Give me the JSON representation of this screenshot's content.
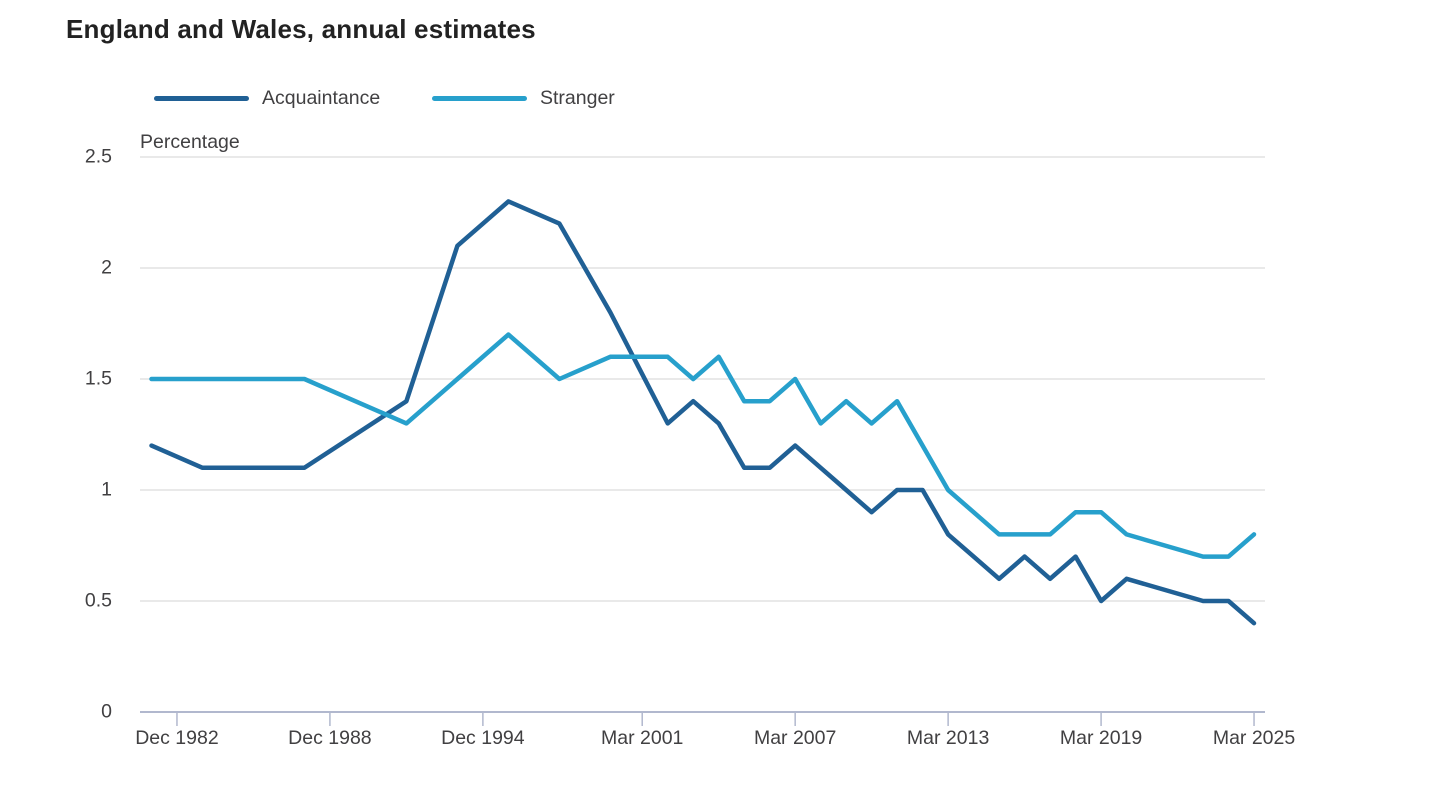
{
  "page": {
    "background": "#ffffff"
  },
  "header": {
    "title": "England and Wales, annual estimates"
  },
  "legend": {
    "items": [
      {
        "label": "Acquaintance",
        "color": "#206095"
      },
      {
        "label": "Stranger",
        "color": "#27A0CC"
      }
    ]
  },
  "chart_data": {
    "type": "line",
    "title": "England and Wales, annual estimates",
    "xlabel": "",
    "ylabel": "Percentage",
    "ylim": [
      0,
      2.5
    ],
    "xlim": [
      1981.55,
      2025.68
    ],
    "grid": "horizontal",
    "grid_color": "#e2e2e2",
    "axis_color": "#b1b8ce",
    "text_color": "#414042",
    "title_color": "#222222",
    "legend_position": "top",
    "yticks": [
      {
        "value": 0,
        "label": "0"
      },
      {
        "value": 0.5,
        "label": "0.5"
      },
      {
        "value": 1,
        "label": "1"
      },
      {
        "value": 1.5,
        "label": "1.5"
      },
      {
        "value": 2,
        "label": "2"
      },
      {
        "value": 2.5,
        "label": "2.5"
      }
    ],
    "xticks": [
      {
        "x": 1983,
        "label": "Dec 1982"
      },
      {
        "x": 1989,
        "label": "Dec 1988"
      },
      {
        "x": 1995,
        "label": "Dec 1994"
      },
      {
        "x": 2001.25,
        "label": "Mar 2001"
      },
      {
        "x": 2007.25,
        "label": "Mar 2007"
      },
      {
        "x": 2013.25,
        "label": "Mar 2013"
      },
      {
        "x": 2019.25,
        "label": "Mar 2019"
      },
      {
        "x": 2025.25,
        "label": "Mar 2025"
      }
    ],
    "series": [
      {
        "name": "Acquaintance",
        "color": "#206095",
        "points": [
          {
            "period": "Dec 1981",
            "x": 1982,
            "y": 1.2
          },
          {
            "period": "Dec 1983",
            "x": 1984,
            "y": 1.1
          },
          {
            "period": "Dec 1987",
            "x": 1988,
            "y": 1.1
          },
          {
            "period": "Dec 1991",
            "x": 1992,
            "y": 1.4
          },
          {
            "period": "Dec 1993",
            "x": 1994,
            "y": 2.1
          },
          {
            "period": "Dec 1995",
            "x": 1996,
            "y": 2.3
          },
          {
            "period": "Dec 1997",
            "x": 1998,
            "y": 2.2
          },
          {
            "period": "Dec 1999",
            "x": 2000,
            "y": 1.8
          },
          {
            "period": "Mar 2002",
            "x": 2002.25,
            "y": 1.3
          },
          {
            "period": "Mar 2003",
            "x": 2003.25,
            "y": 1.4
          },
          {
            "period": "Mar 2004",
            "x": 2004.25,
            "y": 1.3
          },
          {
            "period": "Mar 2005",
            "x": 2005.25,
            "y": 1.1
          },
          {
            "period": "Mar 2006",
            "x": 2006.25,
            "y": 1.1
          },
          {
            "period": "Mar 2007",
            "x": 2007.25,
            "y": 1.2
          },
          {
            "period": "Mar 2008",
            "x": 2008.25,
            "y": 1.1
          },
          {
            "period": "Mar 2009",
            "x": 2009.25,
            "y": 1.0
          },
          {
            "period": "Mar 2010",
            "x": 2010.25,
            "y": 0.9
          },
          {
            "period": "Mar 2011",
            "x": 2011.25,
            "y": 1.0
          },
          {
            "period": "Mar 2012",
            "x": 2012.25,
            "y": 1.0
          },
          {
            "period": "Mar 2013",
            "x": 2013.25,
            "y": 0.8
          },
          {
            "period": "Mar 2014",
            "x": 2014.25,
            "y": 0.7
          },
          {
            "period": "Mar 2015",
            "x": 2015.25,
            "y": 0.6
          },
          {
            "period": "Mar 2016",
            "x": 2016.25,
            "y": 0.7
          },
          {
            "period": "Mar 2017",
            "x": 2017.25,
            "y": 0.6
          },
          {
            "period": "Mar 2018",
            "x": 2018.25,
            "y": 0.7
          },
          {
            "period": "Mar 2019",
            "x": 2019.25,
            "y": 0.5
          },
          {
            "period": "Mar 2020",
            "x": 2020.25,
            "y": 0.6
          },
          {
            "period": "Mar 2023",
            "x": 2023.25,
            "y": 0.5
          },
          {
            "period": "Mar 2024",
            "x": 2024.25,
            "y": 0.5
          },
          {
            "period": "Mar 2025",
            "x": 2025.25,
            "y": 0.4
          }
        ]
      },
      {
        "name": "Stranger",
        "color": "#27A0CC",
        "points": [
          {
            "period": "Dec 1981",
            "x": 1982,
            "y": 1.5
          },
          {
            "period": "Dec 1983",
            "x": 1984,
            "y": 1.5
          },
          {
            "period": "Dec 1987",
            "x": 1988,
            "y": 1.5
          },
          {
            "period": "Dec 1991",
            "x": 1992,
            "y": 1.3
          },
          {
            "period": "Dec 1993",
            "x": 1994,
            "y": 1.5
          },
          {
            "period": "Dec 1995",
            "x": 1996,
            "y": 1.7
          },
          {
            "period": "Dec 1997",
            "x": 1998,
            "y": 1.5
          },
          {
            "period": "Dec 1999",
            "x": 2000,
            "y": 1.6
          },
          {
            "period": "Mar 2002",
            "x": 2002.25,
            "y": 1.6
          },
          {
            "period": "Mar 2003",
            "x": 2003.25,
            "y": 1.5
          },
          {
            "period": "Mar 2004",
            "x": 2004.25,
            "y": 1.6
          },
          {
            "period": "Mar 2005",
            "x": 2005.25,
            "y": 1.4
          },
          {
            "period": "Mar 2006",
            "x": 2006.25,
            "y": 1.4
          },
          {
            "period": "Mar 2007",
            "x": 2007.25,
            "y": 1.5
          },
          {
            "period": "Mar 2008",
            "x": 2008.25,
            "y": 1.3
          },
          {
            "period": "Mar 2009",
            "x": 2009.25,
            "y": 1.4
          },
          {
            "period": "Mar 2010",
            "x": 2010.25,
            "y": 1.3
          },
          {
            "period": "Mar 2011",
            "x": 2011.25,
            "y": 1.4
          },
          {
            "period": "Mar 2012",
            "x": 2012.25,
            "y": 1.2
          },
          {
            "period": "Mar 2013",
            "x": 2013.25,
            "y": 1.0
          },
          {
            "period": "Mar 2014",
            "x": 2014.25,
            "y": 0.9
          },
          {
            "period": "Mar 2015",
            "x": 2015.25,
            "y": 0.8
          },
          {
            "period": "Mar 2016",
            "x": 2016.25,
            "y": 0.8
          },
          {
            "period": "Mar 2017",
            "x": 2017.25,
            "y": 0.8
          },
          {
            "period": "Mar 2018",
            "x": 2018.25,
            "y": 0.9
          },
          {
            "period": "Mar 2019",
            "x": 2019.25,
            "y": 0.9
          },
          {
            "period": "Mar 2020",
            "x": 2020.25,
            "y": 0.8
          },
          {
            "period": "Mar 2023",
            "x": 2023.25,
            "y": 0.7
          },
          {
            "period": "Mar 2024",
            "x": 2024.25,
            "y": 0.7
          },
          {
            "period": "Mar 2025",
            "x": 2025.25,
            "y": 0.8
          }
        ]
      }
    ]
  }
}
